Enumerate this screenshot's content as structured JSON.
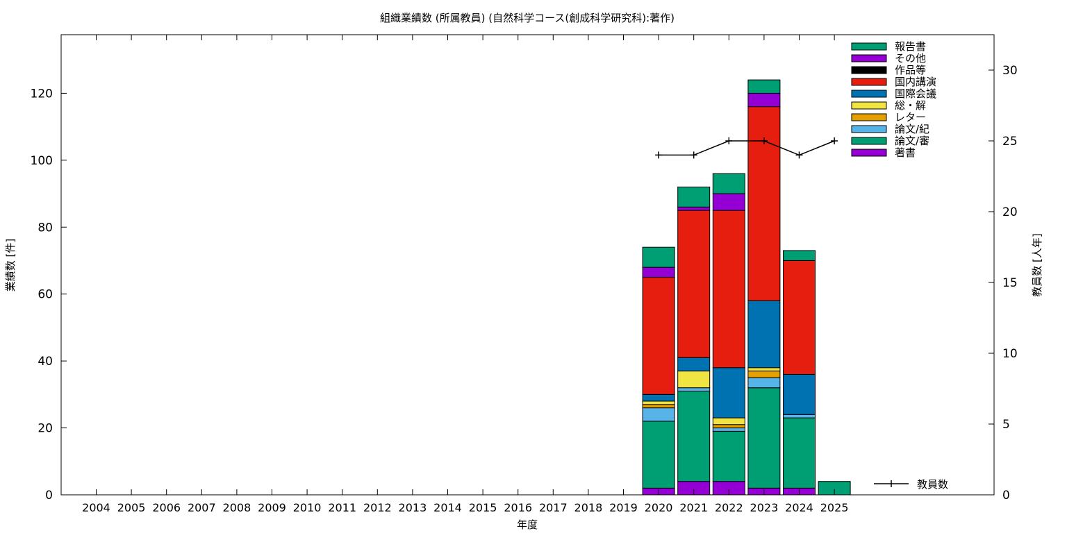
{
  "chart_data": {
    "type": "bar",
    "stacked": true,
    "title": "組織業績数 (所属教員) (自然科学コース(創成科学研究科):著作)",
    "xlabel": "年度",
    "ylabel": "業績数 [件]",
    "y2label": "教員数 [人年]",
    "ylim": [
      0,
      137.5
    ],
    "y2lim": [
      0,
      32.5
    ],
    "yticks": [
      0,
      20,
      40,
      60,
      80,
      100,
      120
    ],
    "y2ticks": [
      0,
      5,
      10,
      15,
      20,
      25,
      30
    ],
    "grid": false,
    "legend_position": "top-right",
    "categories": [
      "2004",
      "2005",
      "2006",
      "2007",
      "2008",
      "2009",
      "2010",
      "2011",
      "2012",
      "2013",
      "2014",
      "2015",
      "2016",
      "2017",
      "2018",
      "2019",
      "2020",
      "2021",
      "2022",
      "2023",
      "2024",
      "2025"
    ],
    "series": [
      {
        "name": "著書",
        "color": "#9400d3",
        "values": [
          0,
          0,
          0,
          0,
          0,
          0,
          0,
          0,
          0,
          0,
          0,
          0,
          0,
          0,
          0,
          0,
          2,
          4,
          4,
          2,
          2,
          0
        ]
      },
      {
        "name": "論文/審",
        "color": "#009e73",
        "values": [
          0,
          0,
          0,
          0,
          0,
          0,
          0,
          0,
          0,
          0,
          0,
          0,
          0,
          0,
          0,
          0,
          20,
          27,
          15,
          30,
          21,
          0
        ]
      },
      {
        "name": "論文/紀",
        "color": "#56b4e9",
        "values": [
          0,
          0,
          0,
          0,
          0,
          0,
          0,
          0,
          0,
          0,
          0,
          0,
          0,
          0,
          0,
          0,
          4,
          1,
          1,
          3,
          1,
          0
        ]
      },
      {
        "name": "レター",
        "color": "#e69f00",
        "values": [
          0,
          0,
          0,
          0,
          0,
          0,
          0,
          0,
          0,
          0,
          0,
          0,
          0,
          0,
          0,
          0,
          1,
          0,
          1,
          2,
          0,
          0
        ]
      },
      {
        "name": "総・解",
        "color": "#f0e442",
        "values": [
          0,
          0,
          0,
          0,
          0,
          0,
          0,
          0,
          0,
          0,
          0,
          0,
          0,
          0,
          0,
          0,
          1,
          5,
          2,
          1,
          0,
          0
        ]
      },
      {
        "name": "国際会議",
        "color": "#0072b2",
        "values": [
          0,
          0,
          0,
          0,
          0,
          0,
          0,
          0,
          0,
          0,
          0,
          0,
          0,
          0,
          0,
          0,
          2,
          4,
          15,
          20,
          12,
          0
        ]
      },
      {
        "name": "国内講演",
        "color": "#e51e10",
        "values": [
          0,
          0,
          0,
          0,
          0,
          0,
          0,
          0,
          0,
          0,
          0,
          0,
          0,
          0,
          0,
          0,
          35,
          44,
          47,
          58,
          34,
          0
        ]
      },
      {
        "name": "作品等",
        "color": "#000000",
        "values": [
          0,
          0,
          0,
          0,
          0,
          0,
          0,
          0,
          0,
          0,
          0,
          0,
          0,
          0,
          0,
          0,
          0,
          0,
          0,
          0,
          0,
          0
        ]
      },
      {
        "name": "その他",
        "color": "#9400d3",
        "values": [
          0,
          0,
          0,
          0,
          0,
          0,
          0,
          0,
          0,
          0,
          0,
          0,
          0,
          0,
          0,
          0,
          3,
          1,
          5,
          4,
          0,
          0
        ]
      },
      {
        "name": "報告書",
        "color": "#009e73",
        "values": [
          0,
          0,
          0,
          0,
          0,
          0,
          0,
          0,
          0,
          0,
          0,
          0,
          0,
          0,
          0,
          0,
          6,
          6,
          6,
          4,
          3,
          4
        ]
      }
    ],
    "line_series": {
      "name": "教員数",
      "axis": "right",
      "color": "#000000",
      "points": [
        {
          "x": "2020",
          "y": 24
        },
        {
          "x": "2021",
          "y": 24
        },
        {
          "x": "2022",
          "y": 25
        },
        {
          "x": "2023",
          "y": 25
        },
        {
          "x": "2024",
          "y": 24
        },
        {
          "x": "2025",
          "y": 25
        }
      ]
    }
  }
}
